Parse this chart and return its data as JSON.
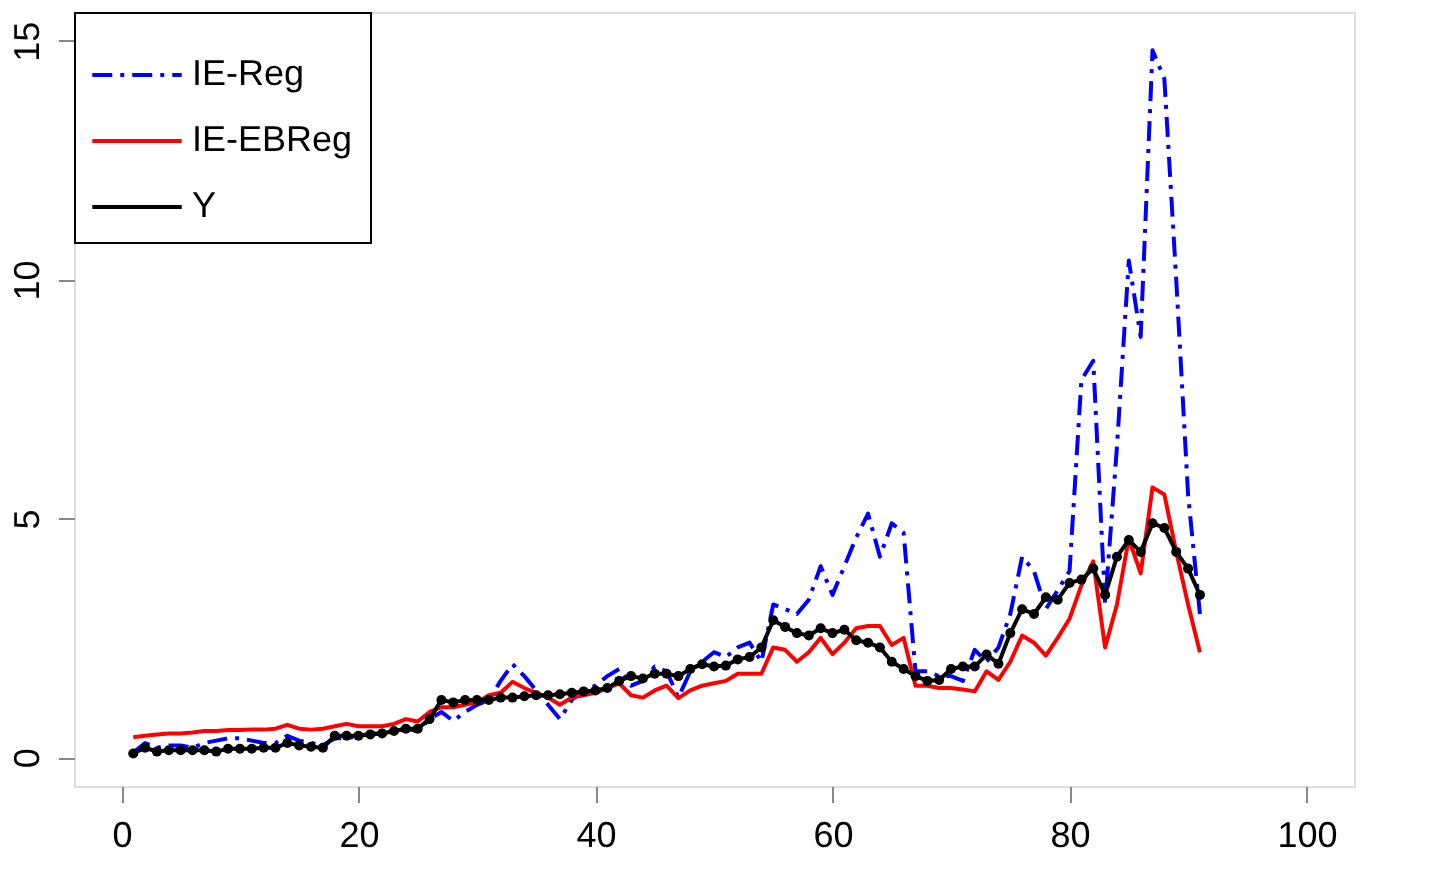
{
  "chart_data": {
    "type": "line",
    "x": [
      1,
      2,
      3,
      4,
      5,
      6,
      7,
      8,
      9,
      10,
      11,
      12,
      13,
      14,
      15,
      16,
      17,
      18,
      19,
      20,
      21,
      22,
      23,
      24,
      25,
      26,
      27,
      28,
      29,
      30,
      31,
      32,
      33,
      34,
      35,
      36,
      37,
      38,
      39,
      40,
      41,
      42,
      43,
      44,
      45,
      46,
      47,
      48,
      49,
      50,
      51,
      52,
      53,
      54,
      55,
      56,
      57,
      58,
      59,
      60,
      61,
      62,
      63,
      64,
      65,
      66,
      67,
      68,
      69,
      70,
      71,
      72,
      73,
      74,
      75,
      76,
      77,
      78,
      79,
      80,
      81,
      82,
      83,
      84,
      85,
      86,
      87,
      88,
      89,
      90,
      91
    ],
    "series": [
      {
        "name": "IE-Reg",
        "color": "#0000ff",
        "line_style": "dashed",
        "marker": "none",
        "values": [
          0.1,
          0.3,
          0.2,
          0.25,
          0.25,
          0.2,
          0.3,
          0.35,
          0.4,
          0.4,
          0.35,
          0.3,
          0.3,
          0.45,
          0.35,
          0.3,
          0.25,
          0.4,
          0.4,
          0.45,
          0.5,
          0.5,
          0.55,
          0.6,
          0.55,
          0.8,
          0.95,
          0.76,
          0.95,
          1.1,
          1.2,
          1.6,
          1.95,
          1.7,
          1.4,
          1.1,
          0.8,
          1.2,
          1.4,
          1.5,
          1.7,
          1.85,
          1.5,
          1.6,
          1.9,
          1.8,
          1.25,
          1.8,
          2.0,
          2.2,
          2.1,
          2.3,
          2.4,
          2.0,
          3.2,
          3.1,
          3.0,
          3.3,
          4.0,
          3.4,
          4.0,
          4.6,
          5.1,
          4.2,
          4.9,
          4.7,
          1.8,
          1.8,
          1.7,
          1.7,
          1.6,
          2.25,
          2.0,
          2.3,
          3.0,
          4.2,
          3.9,
          3.1,
          3.5,
          3.9,
          7.9,
          8.3,
          3.2,
          6.5,
          10.4,
          8.8,
          14.8,
          14.2,
          10.0,
          5.5,
          3.0
        ]
      },
      {
        "name": "IE-EBReg",
        "color": "#ff0000",
        "line_style": "solid",
        "marker": "none",
        "values": [
          0.42,
          0.45,
          0.48,
          0.5,
          0.5,
          0.52,
          0.55,
          0.55,
          0.57,
          0.57,
          0.58,
          0.58,
          0.6,
          0.68,
          0.6,
          0.58,
          0.6,
          0.65,
          0.7,
          0.65,
          0.65,
          0.65,
          0.7,
          0.8,
          0.75,
          0.95,
          1.05,
          1.05,
          1.1,
          1.15,
          1.3,
          1.35,
          1.58,
          1.45,
          1.35,
          1.25,
          1.1,
          1.25,
          1.3,
          1.35,
          1.45,
          1.55,
          1.3,
          1.25,
          1.4,
          1.5,
          1.24,
          1.4,
          1.5,
          1.55,
          1.6,
          1.75,
          1.75,
          1.75,
          2.3,
          2.25,
          2.0,
          2.2,
          2.5,
          2.16,
          2.4,
          2.7,
          2.75,
          2.75,
          2.35,
          2.5,
          1.5,
          1.5,
          1.45,
          1.45,
          1.42,
          1.38,
          1.8,
          1.62,
          2.0,
          2.55,
          2.4,
          2.13,
          2.5,
          2.9,
          3.6,
          4.1,
          2.3,
          3.2,
          4.58,
          3.85,
          5.65,
          5.5,
          4.3,
          3.2,
          2.2
        ]
      },
      {
        "name": "Y",
        "color": "#000000",
        "line_style": "solid",
        "marker": "circle",
        "values": [
          0.08,
          0.2,
          0.12,
          0.15,
          0.15,
          0.15,
          0.15,
          0.12,
          0.18,
          0.18,
          0.18,
          0.2,
          0.2,
          0.3,
          0.25,
          0.22,
          0.2,
          0.45,
          0.45,
          0.45,
          0.48,
          0.5,
          0.55,
          0.6,
          0.6,
          0.8,
          1.2,
          1.15,
          1.2,
          1.2,
          1.2,
          1.25,
          1.25,
          1.28,
          1.3,
          1.3,
          1.32,
          1.35,
          1.38,
          1.4,
          1.45,
          1.6,
          1.7,
          1.65,
          1.75,
          1.75,
          1.7,
          1.85,
          1.95,
          1.9,
          1.92,
          2.05,
          2.1,
          2.3,
          2.87,
          2.73,
          2.6,
          2.55,
          2.7,
          2.6,
          2.67,
          2.45,
          2.4,
          2.3,
          2.0,
          1.85,
          1.7,
          1.6,
          1.62,
          1.85,
          1.9,
          1.9,
          2.15,
          1.96,
          2.6,
          3.1,
          3.0,
          3.35,
          3.3,
          3.65,
          3.72,
          3.95,
          3.4,
          4.2,
          4.55,
          4.3,
          4.9,
          4.8,
          4.3,
          3.95,
          3.4
        ]
      }
    ],
    "xlim": [
      -4,
      104
    ],
    "xticks": [
      0,
      20,
      40,
      60,
      80,
      100
    ],
    "ylim": [
      -0.6,
      15.6
    ],
    "yticks": [
      0,
      5,
      10,
      15
    ],
    "grid": false,
    "legend": "top left"
  }
}
